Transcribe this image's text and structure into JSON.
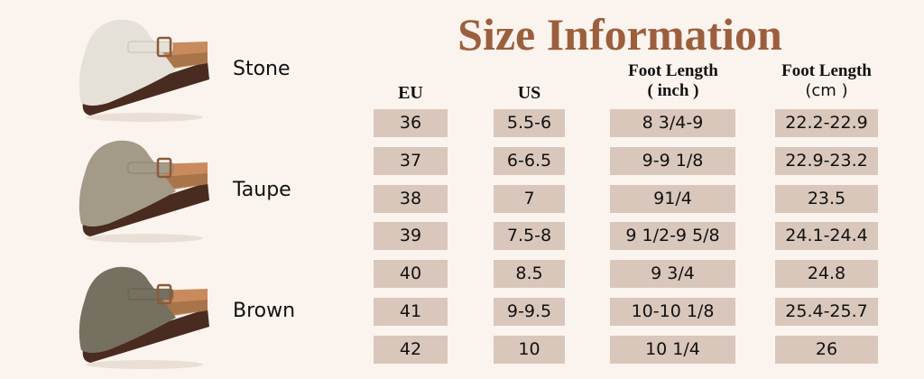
{
  "title": "Size Information",
  "colors": {
    "title": "#9c5f3e",
    "background": "#fbf4ee",
    "cell": "#d9c7bb"
  },
  "variants": [
    {
      "label": "Stone",
      "upper": "#e6e1d8",
      "sole": "#4a2b20"
    },
    {
      "label": "Taupe",
      "upper": "#a49a88",
      "sole": "#4a2b20"
    },
    {
      "label": "Brown",
      "upper": "#757060",
      "sole": "#4a2b20"
    }
  ],
  "table": {
    "headers": {
      "eu": "EU",
      "us": "US",
      "inch_line1": "Foot Length",
      "inch_line2": "( inch )",
      "cm_line1": "Foot Length",
      "cm_line2": "(cm )"
    },
    "rows": [
      {
        "eu": "36",
        "us": "5.5-6",
        "inch": "8 3/4-9",
        "cm": "22.2-22.9"
      },
      {
        "eu": "37",
        "us": "6-6.5",
        "inch": "9-9 1/8",
        "cm": "22.9-23.2"
      },
      {
        "eu": "38",
        "us": "7",
        "inch": "91/4",
        "cm": "23.5"
      },
      {
        "eu": "39",
        "us": "7.5-8",
        "inch": "9 1/2-9 5/8",
        "cm": "24.1-24.4"
      },
      {
        "eu": "40",
        "us": "8.5",
        "inch": "9 3/4",
        "cm": "24.8"
      },
      {
        "eu": "41",
        "us": "9-9.5",
        "inch": "10-10 1/8",
        "cm": "25.4-25.7"
      },
      {
        "eu": "42",
        "us": "10",
        "inch": "10 1/4",
        "cm": "26"
      }
    ]
  }
}
